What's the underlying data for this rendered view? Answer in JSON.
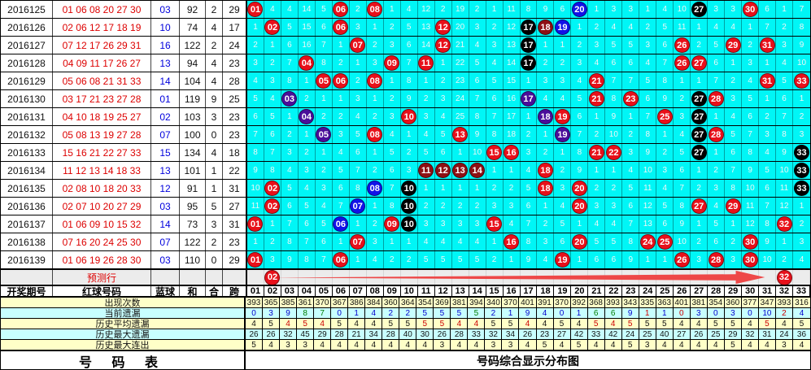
{
  "left_table": {
    "headers": {
      "period": "开奖期号",
      "reds": "红球号码",
      "blue": "蓝球",
      "sum": "和",
      "he": "合",
      "span": "跨"
    },
    "prediction_label": "预测行",
    "rows": [
      {
        "period": "2016125",
        "reds": "01 06 08 20 27 30",
        "blue": "03",
        "sum": "92",
        "he": "2",
        "span": "29"
      },
      {
        "period": "2016126",
        "reds": "02 06 12 17 18 19",
        "blue": "10",
        "sum": "74",
        "he": "4",
        "span": "17"
      },
      {
        "period": "2016127",
        "reds": "07 12 17 26 29 31",
        "blue": "16",
        "sum": "122",
        "he": "2",
        "span": "24"
      },
      {
        "period": "2016128",
        "reds": "04 09 11 17 26 27",
        "blue": "13",
        "sum": "94",
        "he": "4",
        "span": "23"
      },
      {
        "period": "2016129",
        "reds": "05 06 08 21 31 33",
        "blue": "14",
        "sum": "104",
        "he": "4",
        "span": "28"
      },
      {
        "period": "2016130",
        "reds": "03 17 21 23 27 28",
        "blue": "01",
        "sum": "119",
        "he": "9",
        "span": "25"
      },
      {
        "period": "2016131",
        "reds": "04 10 18 19 25 27",
        "blue": "02",
        "sum": "103",
        "he": "3",
        "span": "23"
      },
      {
        "period": "2016132",
        "reds": "05 08 13 19 27 28",
        "blue": "07",
        "sum": "100",
        "he": "0",
        "span": "23"
      },
      {
        "period": "2016133",
        "reds": "15 16 21 22 27 33",
        "blue": "15",
        "sum": "134",
        "he": "4",
        "span": "18"
      },
      {
        "period": "2016134",
        "reds": "11 12 13 14 18 33",
        "blue": "13",
        "sum": "101",
        "he": "1",
        "span": "22"
      },
      {
        "period": "2016135",
        "reds": "02 08 10 18 20 33",
        "blue": "12",
        "sum": "91",
        "he": "1",
        "span": "31"
      },
      {
        "period": "2016136",
        "reds": "02 07 10 20 27 29",
        "blue": "03",
        "sum": "95",
        "he": "5",
        "span": "27"
      },
      {
        "period": "2016137",
        "reds": "01 06 09 10 15 32",
        "blue": "14",
        "sum": "73",
        "he": "3",
        "span": "31"
      },
      {
        "period": "2016138",
        "reds": "07 16 20 24 25 30",
        "blue": "07",
        "sum": "122",
        "he": "2",
        "span": "23"
      },
      {
        "period": "2016139",
        "reds": "01 06 19 26 28 30",
        "blue": "03",
        "sum": "110",
        "he": "0",
        "span": "29"
      }
    ]
  },
  "grid": {
    "columns": [
      "01",
      "02",
      "03",
      "04",
      "05",
      "06",
      "07",
      "08",
      "09",
      "10",
      "11",
      "12",
      "13",
      "14",
      "15",
      "16",
      "17",
      "18",
      "19",
      "20",
      "21",
      "22",
      "23",
      "24",
      "25",
      "26",
      "27",
      "28",
      "29",
      "30",
      "31",
      "32",
      "33"
    ],
    "ball_colors": {
      "R": "#e8101a",
      "B": "#1212e8",
      "K": "#000000",
      "P": "#4a0e9a",
      "M": "#8e1014"
    },
    "rows": [
      [
        "R01",
        "4",
        "4",
        "14",
        "5",
        "R06",
        "2",
        "R08",
        "1",
        "4",
        "12",
        "2",
        "19",
        "2",
        "1",
        "11",
        "8",
        "9",
        "6",
        "B20",
        "1",
        "3",
        "3",
        "1",
        "4",
        "10",
        "K27",
        "3",
        "3",
        "R30",
        "6",
        "1",
        "7"
      ],
      [
        "1",
        "R02",
        "5",
        "15",
        "6",
        "R06",
        "3",
        "1",
        "2",
        "5",
        "13",
        "R12",
        "20",
        "3",
        "2",
        "12",
        "K17",
        "M18",
        "B19",
        "1",
        "2",
        "4",
        "4",
        "2",
        "5",
        "11",
        "1",
        "4",
        "4",
        "1",
        "7",
        "2",
        "8"
      ],
      [
        "2",
        "1",
        "6",
        "16",
        "7",
        "1",
        "R07",
        "2",
        "3",
        "6",
        "14",
        "R12",
        "21",
        "4",
        "3",
        "13",
        "K17",
        "1",
        "1",
        "2",
        "3",
        "5",
        "5",
        "3",
        "6",
        "R26",
        "2",
        "5",
        "R29",
        "2",
        "R31",
        "3",
        "9"
      ],
      [
        "3",
        "2",
        "7",
        "R04",
        "8",
        "2",
        "1",
        "3",
        "R09",
        "7",
        "R11",
        "1",
        "22",
        "5",
        "4",
        "14",
        "K17",
        "2",
        "2",
        "3",
        "4",
        "6",
        "6",
        "4",
        "7",
        "R26",
        "R27",
        "6",
        "1",
        "3",
        "1",
        "4",
        "10"
      ],
      [
        "4",
        "3",
        "8",
        "1",
        "R05",
        "R06",
        "2",
        "R08",
        "1",
        "8",
        "1",
        "2",
        "23",
        "6",
        "5",
        "15",
        "1",
        "3",
        "3",
        "4",
        "R21",
        "7",
        "7",
        "5",
        "8",
        "1",
        "1",
        "7",
        "2",
        "4",
        "R31",
        "5",
        "R33"
      ],
      [
        "5",
        "4",
        "P03",
        "2",
        "1",
        "1",
        "3",
        "1",
        "2",
        "9",
        "2",
        "3",
        "24",
        "7",
        "6",
        "16",
        "P17",
        "4",
        "4",
        "5",
        "R21",
        "8",
        "R23",
        "6",
        "9",
        "2",
        "K27",
        "R28",
        "3",
        "5",
        "1",
        "6",
        "1"
      ],
      [
        "6",
        "5",
        "1",
        "P04",
        "2",
        "2",
        "4",
        "2",
        "3",
        "R10",
        "3",
        "4",
        "25",
        "8",
        "7",
        "17",
        "1",
        "P18",
        "R19",
        "6",
        "1",
        "9",
        "1",
        "7",
        "R25",
        "3",
        "K27",
        "1",
        "4",
        "6",
        "2",
        "7",
        "2"
      ],
      [
        "7",
        "6",
        "2",
        "1",
        "P05",
        "3",
        "5",
        "R08",
        "4",
        "1",
        "4",
        "5",
        "R13",
        "9",
        "8",
        "18",
        "2",
        "1",
        "P19",
        "7",
        "2",
        "10",
        "2",
        "8",
        "1",
        "4",
        "K27",
        "R28",
        "5",
        "7",
        "3",
        "8",
        "3"
      ],
      [
        "8",
        "7",
        "3",
        "2",
        "1",
        "4",
        "6",
        "1",
        "5",
        "2",
        "5",
        "6",
        "1",
        "10",
        "R15",
        "R16",
        "3",
        "2",
        "1",
        "8",
        "R21",
        "R22",
        "3",
        "9",
        "2",
        "5",
        "K27",
        "1",
        "6",
        "8",
        "4",
        "9",
        "K33"
      ],
      [
        "9",
        "8",
        "4",
        "3",
        "2",
        "5",
        "7",
        "2",
        "6",
        "3",
        "M11",
        "M12",
        "M13",
        "M14",
        "1",
        "1",
        "4",
        "R18",
        "2",
        "9",
        "1",
        "1",
        "4",
        "10",
        "3",
        "6",
        "1",
        "2",
        "7",
        "9",
        "5",
        "10",
        "K33"
      ],
      [
        "10",
        "R02",
        "5",
        "4",
        "3",
        "6",
        "8",
        "B08",
        "7",
        "K10",
        "1",
        "1",
        "1",
        "1",
        "2",
        "2",
        "5",
        "R18",
        "3",
        "R20",
        "2",
        "2",
        "5",
        "11",
        "4",
        "7",
        "2",
        "3",
        "8",
        "10",
        "6",
        "11",
        "K33"
      ],
      [
        "11",
        "R02",
        "6",
        "5",
        "4",
        "7",
        "B07",
        "1",
        "8",
        "K10",
        "2",
        "2",
        "2",
        "2",
        "3",
        "3",
        "6",
        "1",
        "4",
        "R20",
        "3",
        "3",
        "6",
        "12",
        "5",
        "8",
        "R27",
        "4",
        "R29",
        "11",
        "7",
        "12",
        "1"
      ],
      [
        "R01",
        "1",
        "7",
        "6",
        "5",
        "B06",
        "1",
        "2",
        "R09",
        "K10",
        "3",
        "3",
        "3",
        "3",
        "R15",
        "4",
        "7",
        "2",
        "5",
        "1",
        "4",
        "4",
        "7",
        "13",
        "6",
        "9",
        "1",
        "5",
        "1",
        "12",
        "8",
        "R32",
        "2"
      ],
      [
        "1",
        "2",
        "8",
        "7",
        "6",
        "1",
        "R07",
        "3",
        "1",
        "1",
        "4",
        "4",
        "4",
        "4",
        "1",
        "R16",
        "8",
        "3",
        "6",
        "R20",
        "5",
        "5",
        "8",
        "R24",
        "R25",
        "10",
        "2",
        "6",
        "2",
        "R30",
        "9",
        "1",
        "3"
      ],
      [
        "R01",
        "3",
        "9",
        "8",
        "7",
        "R06",
        "1",
        "4",
        "2",
        "2",
        "5",
        "5",
        "5",
        "5",
        "2",
        "1",
        "9",
        "4",
        "R19",
        "1",
        "6",
        "6",
        "9",
        "1",
        "1",
        "R26",
        "3",
        "R28",
        "3",
        "R30",
        "10",
        "2",
        "4"
      ]
    ],
    "prediction_row": {
      "start_ball": {
        "col": 2,
        "value": "02",
        "color": "R"
      },
      "end_ball": {
        "col": 32,
        "value": "32",
        "color": "R"
      },
      "arrow_color": "#ee4848"
    }
  },
  "stats": {
    "value_colors": {
      "b": "#0000cc",
      "g": "#007d00",
      "r": "#cc0000",
      "k": "#111111"
    },
    "rows": [
      {
        "label": "出现次数",
        "bg": "#ffffc8",
        "values": [
          "393",
          "365",
          "385",
          "361",
          "370",
          "367",
          "386",
          "384",
          "360",
          "364",
          "354",
          "369",
          "381",
          "394",
          "340",
          "370",
          "401",
          "391",
          "370",
          "392",
          "368",
          "393",
          "343",
          "335",
          "363",
          "401",
          "381",
          "354",
          "360",
          "377",
          "347",
          "393",
          "316"
        ]
      },
      {
        "label": "当前遗漏",
        "bg": "#c8ffff",
        "values": [
          "0:b",
          "3:b",
          "9:b",
          "8:g",
          "7:g",
          "0:b",
          "1:b",
          "4:b",
          "2:b",
          "2:b",
          "5:b",
          "5:b",
          "5:b",
          "5:g",
          "2:b",
          "1:b",
          "9:b",
          "4:b",
          "0:b",
          "1:b",
          "6:g",
          "6:g",
          "9:b",
          "1:r",
          "1:b",
          "0:r",
          "3:b",
          "0:b",
          "3:b",
          "0:b",
          "10:b",
          "2:r",
          "4:b"
        ]
      },
      {
        "label": "历史平均遗漏",
        "bg": "#ffffc8",
        "values": [
          "4:k",
          "5:k",
          "4:r",
          "5:r",
          "4:r",
          "5:k",
          "4:k",
          "4:k",
          "5:k",
          "5:k",
          "5:r",
          "5:r",
          "4:r",
          "4:r",
          "5:k",
          "5:k",
          "4:r",
          "4:k",
          "5:k",
          "4:k",
          "5:r",
          "4:r",
          "5:r",
          "5:k",
          "5:k",
          "4:k",
          "4:k",
          "5:k",
          "5:k",
          "4:k",
          "5:r",
          "4:k",
          "5:k"
        ]
      },
      {
        "label": "历史最大遗漏",
        "bg": "#c8ffff",
        "values": [
          "26",
          "26",
          "32",
          "45",
          "29",
          "28",
          "21",
          "34",
          "28",
          "40",
          "30",
          "26",
          "28",
          "33",
          "32",
          "34",
          "26",
          "23",
          "27",
          "42",
          "33",
          "42",
          "24",
          "25",
          "40",
          "27",
          "26",
          "25",
          "29",
          "32",
          "31",
          "24",
          "36"
        ]
      },
      {
        "label": "历史最大连出",
        "bg": "#ffffc8",
        "values": [
          "5",
          "4",
          "3",
          "3",
          "4",
          "4",
          "4",
          "4",
          "4",
          "4",
          "4",
          "3",
          "4",
          "4",
          "3",
          "3",
          "4",
          "5",
          "4",
          "5",
          "4",
          "4",
          "5",
          "3",
          "4",
          "4",
          "4",
          "4",
          "5",
          "4",
          "4",
          "3",
          "4"
        ]
      }
    ]
  },
  "footer": {
    "left_title": "号 码 表",
    "right_title": "号码综合显示分布图"
  }
}
